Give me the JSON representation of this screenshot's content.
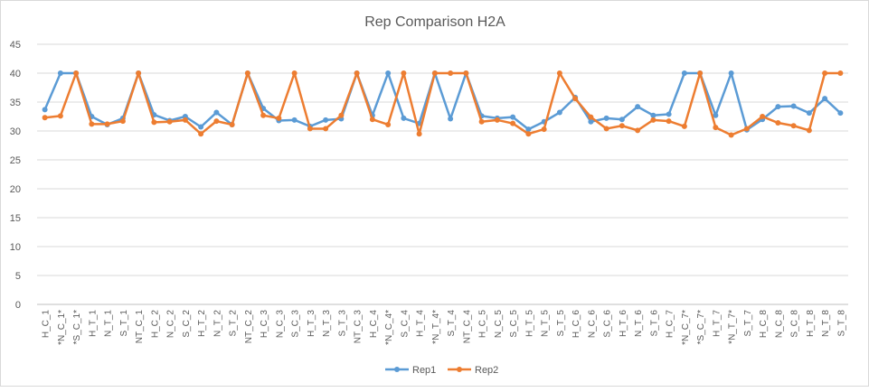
{
  "chart_data": {
    "type": "line",
    "title": "Rep Comparison H2A",
    "xlabel": "",
    "ylabel": "",
    "ylim": [
      0,
      45
    ],
    "yticks": [
      "0",
      "5",
      "10",
      "15",
      "20",
      "25",
      "30",
      "35",
      "40",
      "45"
    ],
    "grid": true,
    "legend_position": "bottom",
    "categories": [
      "H_C_1",
      "*N_C_1*",
      "*S_C_1*",
      "H_T_1",
      "N_T_1",
      "S_T_1",
      "NT_C_1",
      "H_C_2",
      "N_C_2",
      "S_C_2",
      "H_T_2",
      "N_T_2",
      "S_T_2",
      "NT_C_2",
      "H_C_3",
      "N_C_3",
      "S_C_3",
      "H_T_3",
      "N_T_3",
      "S_T_3",
      "NT_C_3",
      "H_C_4",
      "*N_C_4*",
      "S_C_4",
      "H_T_4",
      "*N_T_4*",
      "S_T_4",
      "NT_C_4",
      "H_C_5",
      "N_C_5",
      "S_C_5",
      "H_T_5",
      "N_T_5",
      "S_T_5",
      "H_C_6",
      "N_C_6",
      "S_C_6",
      "H_T_6",
      "N_T_6",
      "S_T_6",
      "H_C_7",
      "*N_C_7*",
      "*S_C_7*",
      "H_T_7",
      "*N_T_7*",
      "S_T_7",
      "H_C_8",
      "N_C_8",
      "S_C_8",
      "H_T_8",
      "N_T_8",
      "S_T_8"
    ],
    "series": [
      {
        "name": "Rep1",
        "color": "#5b9bd5",
        "values": [
          33.7,
          40.0,
          40.0,
          32.5,
          31.1,
          32.2,
          40.0,
          32.8,
          31.8,
          32.5,
          30.7,
          33.2,
          31.1,
          40.0,
          33.9,
          31.8,
          31.9,
          30.8,
          31.9,
          32.1,
          40.0,
          32.7,
          40.0,
          32.2,
          31.3,
          40.0,
          32.1,
          40.0,
          32.6,
          32.2,
          32.4,
          30.3,
          31.6,
          33.2,
          35.8,
          31.6,
          32.2,
          32.0,
          34.2,
          32.7,
          32.9,
          40.0,
          40.0,
          32.7,
          40.0,
          30.2,
          32.0,
          34.2,
          34.3,
          33.1,
          35.6,
          33.1
        ]
      },
      {
        "name": "Rep2",
        "color": "#ed7d31",
        "values": [
          32.3,
          32.6,
          40.0,
          31.2,
          31.2,
          31.7,
          40.0,
          31.5,
          31.6,
          31.9,
          29.5,
          31.7,
          31.1,
          40.0,
          32.7,
          32.2,
          40.0,
          30.4,
          30.4,
          32.7,
          40.0,
          32.0,
          31.1,
          40.0,
          29.5,
          40.0,
          40.0,
          40.0,
          31.6,
          31.9,
          31.3,
          29.5,
          30.3,
          40.0,
          35.6,
          32.4,
          30.4,
          30.9,
          30.1,
          31.9,
          31.7,
          30.8,
          40.0,
          30.6,
          29.3,
          30.4,
          32.5,
          31.4,
          30.9,
          30.1,
          40.0,
          40.0
        ]
      }
    ]
  }
}
